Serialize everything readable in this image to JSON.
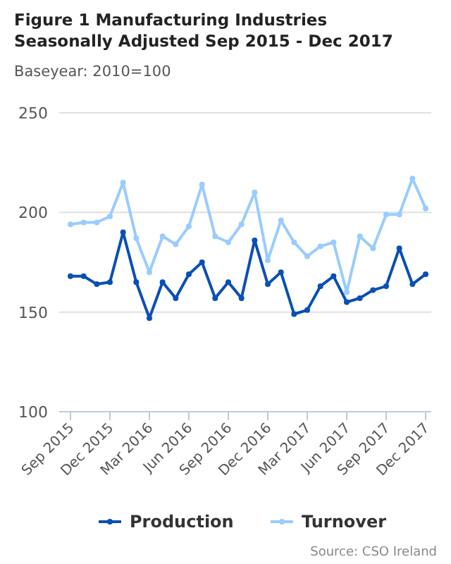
{
  "chart_data": {
    "type": "line",
    "title": "Figure 1 Manufacturing Industries Seasonally Adjusted Sep 2015 - Dec 2017",
    "subtitle": "Baseyear: 2010=100",
    "categories": [
      "Sep 2015",
      null,
      null,
      "Dec 2015",
      null,
      null,
      "Mar 2016",
      null,
      null,
      "Jun 2016",
      null,
      null,
      "Sep 2016",
      null,
      null,
      "Dec 2016",
      null,
      null,
      "Mar 2017",
      null,
      null,
      "Jun 2017",
      null,
      null,
      "Sep 2017",
      null,
      null,
      "Dec 2017"
    ],
    "series": [
      {
        "name": "Production",
        "color": "#0a4fb5",
        "values": [
          168,
          168,
          164,
          165,
          190,
          165,
          147,
          165,
          157,
          169,
          175,
          157,
          165,
          157,
          186,
          164,
          170,
          149,
          151,
          163,
          168,
          155,
          157,
          161,
          163,
          182,
          164,
          169
        ]
      },
      {
        "name": "Turnover",
        "color": "#99ccff",
        "values": [
          194,
          195,
          195,
          198,
          215,
          187,
          170,
          188,
          184,
          193,
          214,
          188,
          185,
          194,
          210,
          176,
          196,
          185,
          178,
          183,
          185,
          160,
          188,
          182,
          199,
          199,
          217,
          202
        ]
      }
    ],
    "ylim": [
      100,
      250
    ],
    "yticks": [
      100,
      150,
      200,
      250
    ],
    "grid": "y",
    "legend": "bottom",
    "marker": "circle",
    "line_style": "solid",
    "annotations": [
      "Source: CSO Ireland"
    ]
  }
}
